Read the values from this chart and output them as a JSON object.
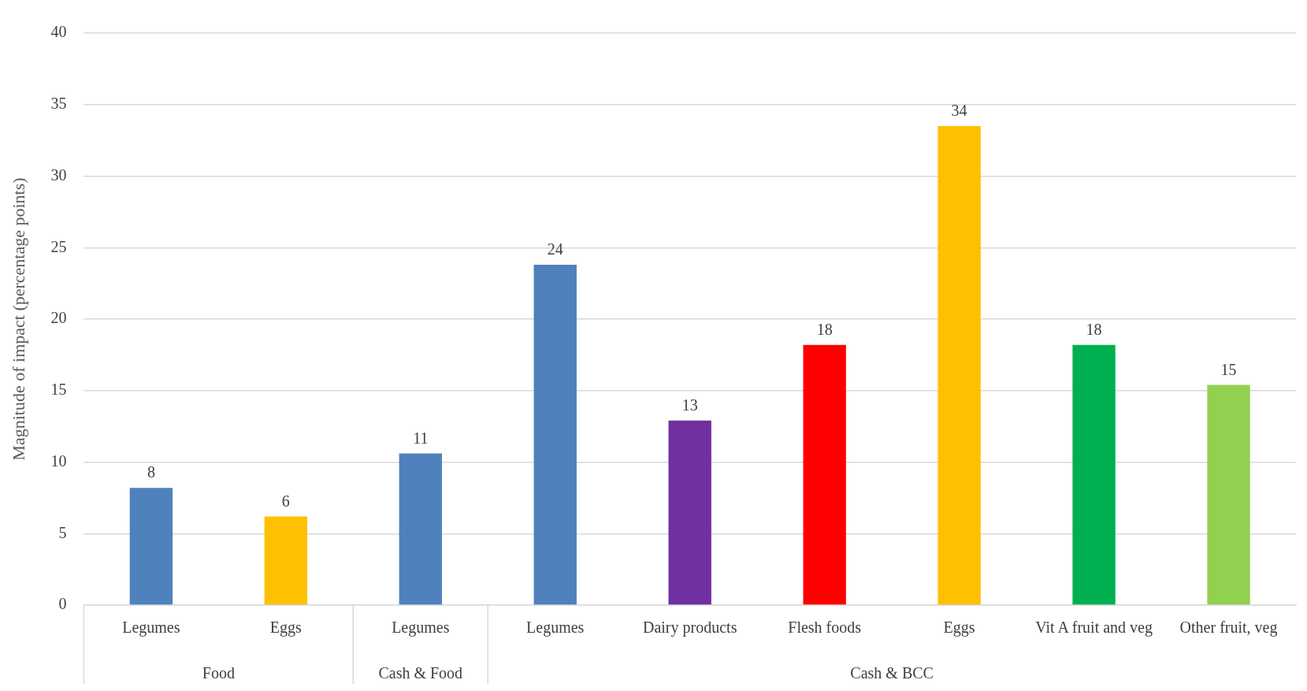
{
  "chart_data": {
    "type": "bar",
    "ylabel": "Magnitude of impact (percentage points)",
    "categories": [
      "Legumes",
      "Eggs",
      "Legumes",
      "Legumes",
      "Dairy products",
      "Flesh foods",
      "Eggs",
      "Vit A fruit and veg",
      "Other fruit, veg"
    ],
    "values": [
      8.2,
      6.2,
      10.6,
      23.8,
      12.9,
      18.2,
      33.5,
      18.2,
      15.4
    ],
    "value_labels": [
      "8",
      "6",
      "11",
      "24",
      "13",
      "18",
      "34",
      "18",
      "15"
    ],
    "colors": [
      "#4f81bd",
      "#ffc000",
      "#4f81bd",
      "#4f81bd",
      "#7030a0",
      "#ff0000",
      "#ffc000",
      "#00b050",
      "#92d050"
    ],
    "ylim": [
      0,
      40
    ],
    "yticks": [
      0,
      5,
      10,
      15,
      20,
      25,
      30,
      35,
      40
    ],
    "grid": "y",
    "legend": false,
    "annotations": [
      "Food",
      "Cash & Food",
      "Cash & BCC"
    ]
  }
}
